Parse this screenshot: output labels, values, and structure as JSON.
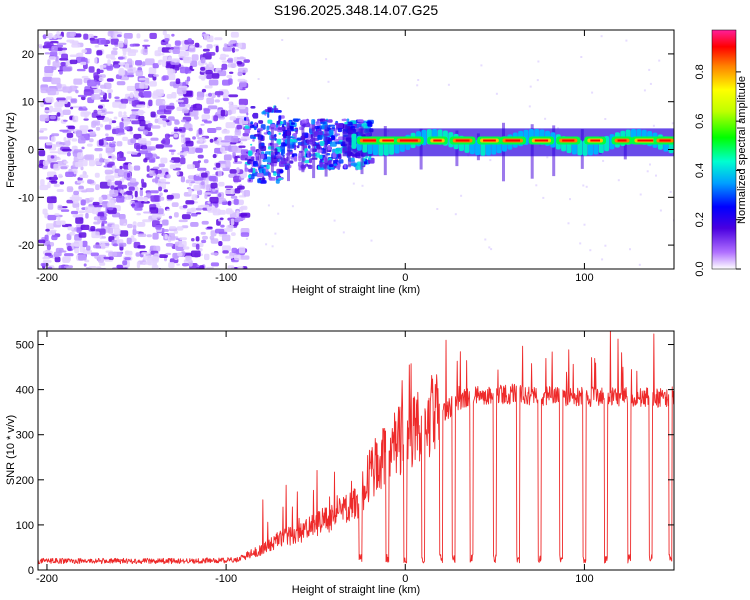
{
  "title": "S196.2025.348.14.07.G25",
  "chart_data": [
    {
      "type": "heatmap",
      "name": "spectrogram",
      "title": "S196.2025.348.14.07.G25",
      "xlabel": "Height of straight line (km)",
      "ylabel": "Frequency (Hz)",
      "xlim": [
        -205,
        150
      ],
      "ylim": [
        -25,
        25
      ],
      "xticks": [
        -200,
        -100,
        0,
        100
      ],
      "yticks": [
        -20,
        -10,
        0,
        10,
        20
      ],
      "colorbar": {
        "label": "Normalized spectral amplitude",
        "range": [
          0,
          0.97
        ],
        "ticks": [
          0.0,
          0.2,
          0.4,
          0.6,
          0.8
        ],
        "tick_labels": [
          "0.0",
          "0.2",
          "0.4",
          "0.6",
          "0.8"
        ],
        "colors": [
          "#ffffff",
          "#a040ff",
          "#4a00e0",
          "#0000ff",
          "#00a0ff",
          "#00ffd0",
          "#00ff00",
          "#ffff00",
          "#ff8000",
          "#ff0000",
          "#ff1f9a"
        ]
      },
      "regions": [
        {
          "name": "noise",
          "x_range": [
            -205,
            -90
          ],
          "freq_range": [
            -25,
            25
          ],
          "level": "0.1-0.3"
        },
        {
          "name": "signal-onset",
          "x_range": [
            -90,
            -20
          ],
          "freq_range": [
            -8,
            8
          ],
          "level": "0.2-0.5"
        },
        {
          "name": "tone",
          "x_range": [
            -20,
            150
          ],
          "freq_center": 1.5,
          "level": "0.8-0.97"
        }
      ]
    },
    {
      "type": "line",
      "name": "snr",
      "xlabel": "Height of straight line (km)",
      "ylabel": "SNR (10 * v/v)",
      "xlim": [
        -205,
        150
      ],
      "ylim": [
        0,
        530
      ],
      "xticks": [
        -200,
        -100,
        0,
        100
      ],
      "yticks": [
        0,
        100,
        200,
        300,
        400,
        500
      ],
      "color": "#ee2a2a",
      "profile": {
        "x": [
          -205,
          -120,
          -95,
          -80,
          -70,
          -60,
          -50,
          -40,
          -30,
          -25,
          -20,
          -15,
          -10,
          -5,
          0,
          5,
          10,
          15,
          20,
          25,
          30,
          40,
          50,
          60,
          70,
          80,
          90,
          100,
          110,
          120,
          130,
          140,
          150
        ],
        "y": [
          20,
          20,
          22,
          45,
          70,
          80,
          100,
          120,
          140,
          160,
          210,
          240,
          260,
          280,
          300,
          320,
          330,
          340,
          350,
          360,
          375,
          385,
          390,
          390,
          385,
          385,
          385,
          385,
          385,
          385,
          385,
          380,
          385
        ]
      },
      "dropouts_x": [
        -25,
        -10,
        0,
        10,
        20,
        27,
        37,
        50,
        63,
        75,
        87,
        100,
        112,
        125,
        137,
        148
      ],
      "dropout_y": 15
    }
  ]
}
